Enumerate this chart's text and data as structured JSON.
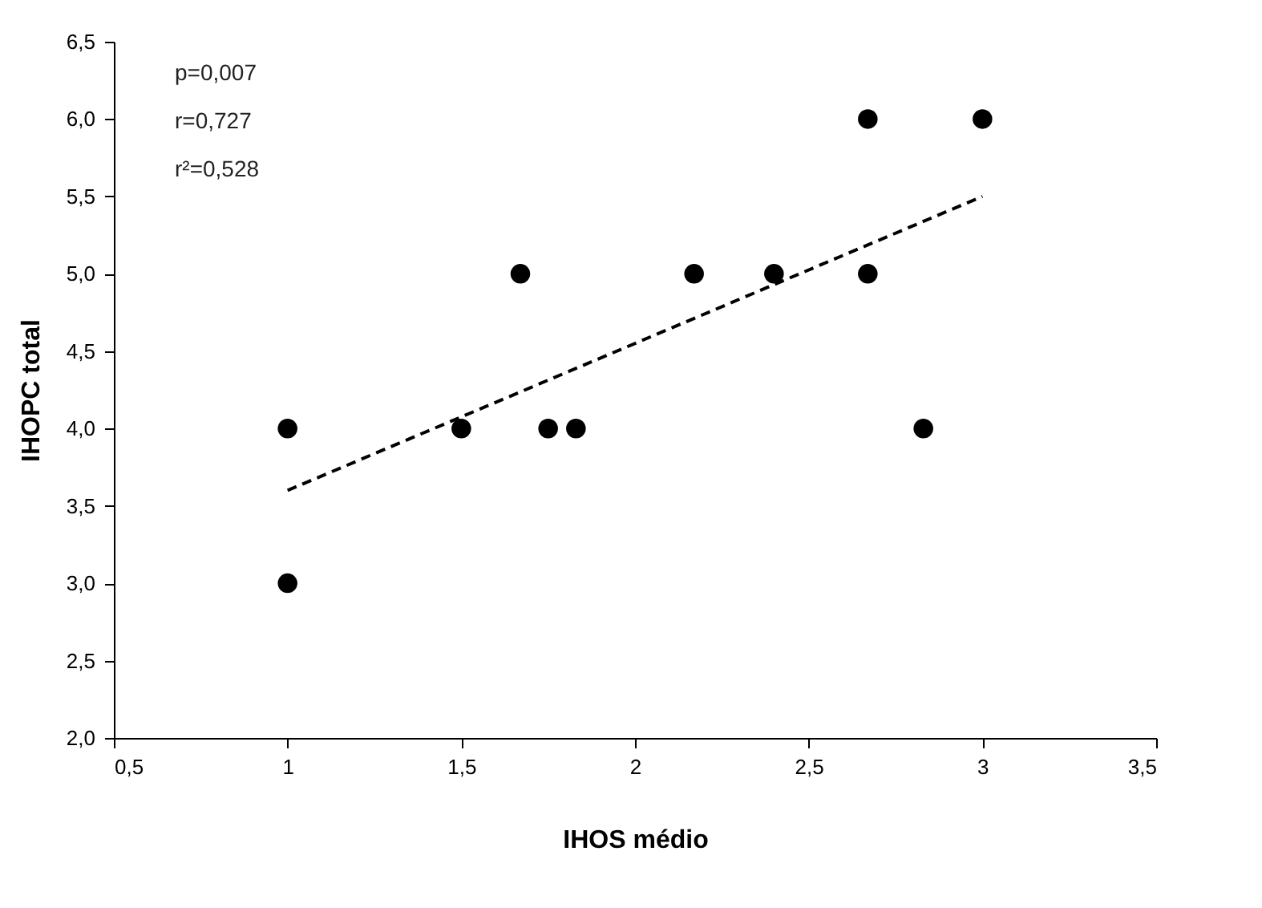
{
  "chart_data": {
    "type": "scatter",
    "xlabel": "IHOS médio",
    "ylabel": "IHOPC total",
    "annotations": [
      "p=0,007",
      "r=0,727",
      "r²=0,528"
    ],
    "xlim": [
      0.5,
      3.5
    ],
    "ylim": [
      2.0,
      6.5
    ],
    "xticks": [
      {
        "value": 0.5,
        "label": "0,5"
      },
      1,
      {
        "value": 1.5,
        "label": "1,5"
      },
      2,
      {
        "value": 2.5,
        "label": "2,5"
      },
      3,
      {
        "value": 3.5,
        "label": "3,5"
      }
    ],
    "yticks": [
      {
        "value": 2.0,
        "label": "2,0"
      },
      {
        "value": 2.5,
        "label": "2,5"
      },
      {
        "value": 3.0,
        "label": "3,0"
      },
      {
        "value": 3.5,
        "label": "3,5"
      },
      {
        "value": 4.0,
        "label": "4,0"
      },
      {
        "value": 4.5,
        "label": "4,5"
      },
      {
        "value": 5.0,
        "label": "5,0"
      },
      {
        "value": 5.5,
        "label": "5,5"
      },
      {
        "value": 6.0,
        "label": "6,0"
      },
      {
        "value": 6.5,
        "label": "6,5"
      }
    ],
    "grid": false,
    "series": [
      {
        "marker": "circle",
        "color": "#000000",
        "x": [
          1,
          1,
          1.5,
          1.67,
          1.75,
          1.83,
          2.17,
          2.4,
          2.67,
          2.67,
          2.83,
          3
        ],
        "values": [
          4,
          3,
          4,
          5,
          4,
          4,
          5,
          5,
          6,
          5,
          4,
          6
        ]
      },
      {
        "type": "line",
        "color": "#000000",
        "line_style": "dashed",
        "x": [
          1,
          3
        ],
        "values": [
          3.6,
          5.5
        ]
      }
    ]
  }
}
